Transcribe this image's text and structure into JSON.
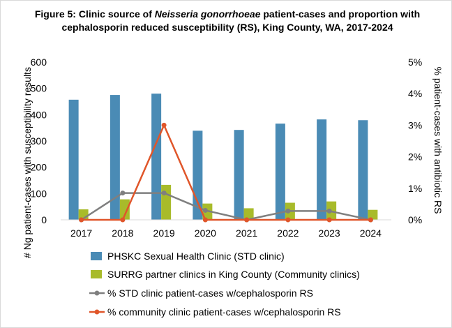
{
  "chart_data": {
    "type": "bar+line",
    "title": {
      "part1": "Figure 5: Clinic source of ",
      "italic": "Neisseria gonorrhoeae",
      "part2": " patient-cases and proportion with cephalosporin reduced susceptibility (RS), King County, WA, 2017-2024"
    },
    "categories": [
      "2017",
      "2018",
      "2019",
      "2020",
      "2021",
      "2022",
      "2023",
      "2024"
    ],
    "ylabel_left": "# Ng patient-cases with susceptibility results",
    "ylabel_right": "% patient-cases with antibiotic RS",
    "ylim_left": [
      0,
      600
    ],
    "yticks_left": [
      "0",
      "100",
      "200",
      "300",
      "400",
      "500",
      "600"
    ],
    "ylim_right": [
      0,
      5
    ],
    "yticks_right": [
      "0%",
      "1%",
      "2%",
      "3%",
      "4%",
      "5%"
    ],
    "bar_series": [
      {
        "name": "PHSKC Sexual Health Clinic (STD clinic)",
        "color": "#4a8bb5",
        "values": [
          457,
          475,
          480,
          339,
          342,
          366,
          382,
          379
        ]
      },
      {
        "name": "SURRG partner clinics in King County (Community clinics)",
        "color": "#a8bb2a",
        "values": [
          40,
          78,
          133,
          62,
          44,
          65,
          70,
          38
        ]
      }
    ],
    "line_series": [
      {
        "name": "% STD clinic patient-cases w/cephalosporin RS",
        "color": "#7f7f7f",
        "values": [
          0,
          0.85,
          0.85,
          0.3,
          0,
          0.28,
          0.28,
          0
        ]
      },
      {
        "name": "% community clinic patient-cases w/cephalosporin RS",
        "color": "#e0562a",
        "values": [
          0,
          0,
          3.0,
          0,
          0,
          0,
          0,
          0
        ]
      }
    ],
    "grid": false,
    "legend_position": "bottom"
  }
}
